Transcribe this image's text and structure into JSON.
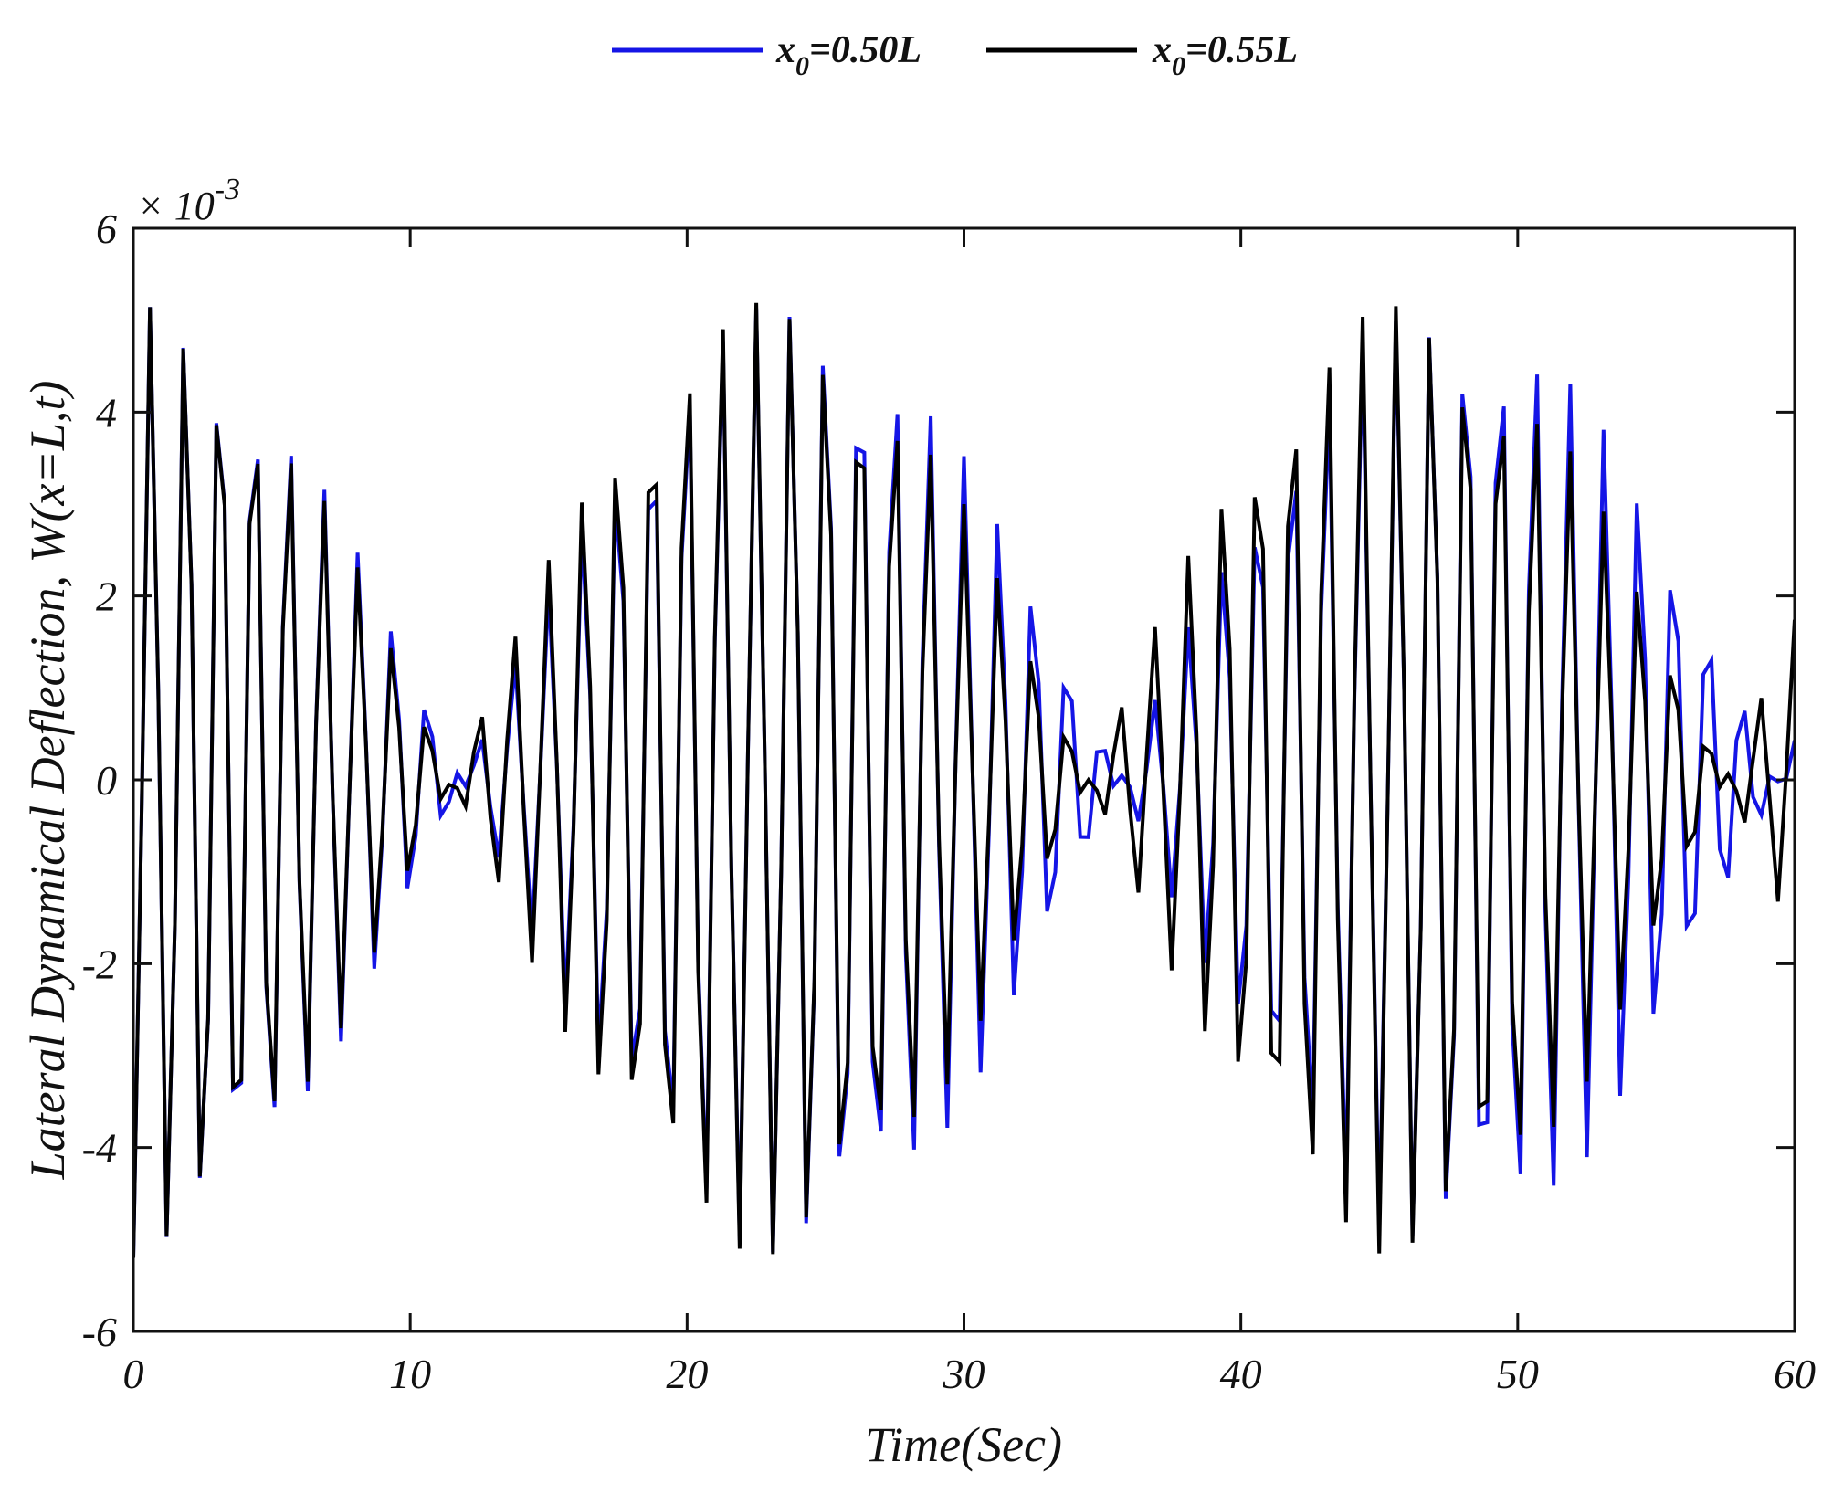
{
  "chart_data": {
    "type": "line",
    "xlabel": "Time(Sec)",
    "ylabel": "Lateral Dynamical Deflection, W(x=L,t)",
    "xlim": [
      0,
      60
    ],
    "ylim": [
      -6,
      6
    ],
    "x_ticks": [
      "0",
      "10",
      "20",
      "30",
      "40",
      "50",
      "60"
    ],
    "y_ticks": [
      "-6",
      "-4",
      "-2",
      "0",
      "2",
      "4",
      "6"
    ],
    "y_multiplier": {
      "base": "× 10",
      "exponent": "-3"
    },
    "grid": false,
    "legend_position": "top-center",
    "amplitude": 5.2,
    "sample_step": 0.3,
    "series": [
      {
        "name": "x0=0.50L",
        "label_main": "x",
        "label_sub": "0",
        "label_rest": "=0.50L",
        "color": "#1515e6",
        "beat_period": 47.5,
        "beat_phase": 0.0,
        "carrier_period": 1.25,
        "carrier_phase": 0.0,
        "t_start": 0.0,
        "t_end": 60.0
      },
      {
        "name": "x0=0.55L",
        "label_main": "x",
        "label_sub": "0",
        "label_rest": "=0.55L",
        "color": "#000000",
        "beat_period": 46.0,
        "beat_phase": 0.0,
        "carrier_period": 1.25,
        "carrier_phase": 0.0,
        "t_start": 0.0,
        "t_end": 60.0
      }
    ]
  }
}
